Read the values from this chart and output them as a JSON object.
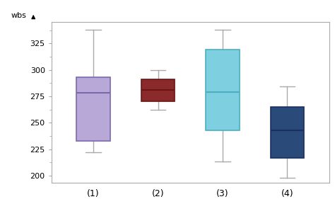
{
  "boxes": [
    {
      "label": "(1)",
      "whislo": 222,
      "q1": 233,
      "med": 278,
      "q3": 293,
      "whishi": 338,
      "color": "#b8a8d8",
      "edge_color": "#7a6aaa",
      "median_color": "#7a6aaa"
    },
    {
      "label": "(2)",
      "whislo": 262,
      "q1": 270,
      "med": 281,
      "q3": 291,
      "whishi": 300,
      "color": "#8b2a2a",
      "edge_color": "#6a1515",
      "median_color": "#6a1515"
    },
    {
      "label": "(3)",
      "whislo": 213,
      "q1": 243,
      "med": 279,
      "q3": 319,
      "whishi": 338,
      "color": "#7ecfdf",
      "edge_color": "#4aafbf",
      "median_color": "#4aafbf"
    },
    {
      "label": "(4)",
      "whislo": 198,
      "q1": 217,
      "med": 243,
      "q3": 265,
      "whishi": 284,
      "color": "#2a4a7a",
      "edge_color": "#1a3060",
      "median_color": "#1a3060"
    }
  ],
  "ylabel": "wbs",
  "ylim": [
    193,
    345
  ],
  "yticks": [
    200,
    225,
    250,
    275,
    300,
    325
  ],
  "background_color": "#ffffff",
  "plot_bg_color": "#ffffff",
  "box_width": 0.52,
  "whisker_color": "#aaaaaa",
  "cap_color": "#aaaaaa",
  "border_color": "#aaaaaa",
  "tick_label_fontsize": 8,
  "xlabel_fontsize": 9
}
